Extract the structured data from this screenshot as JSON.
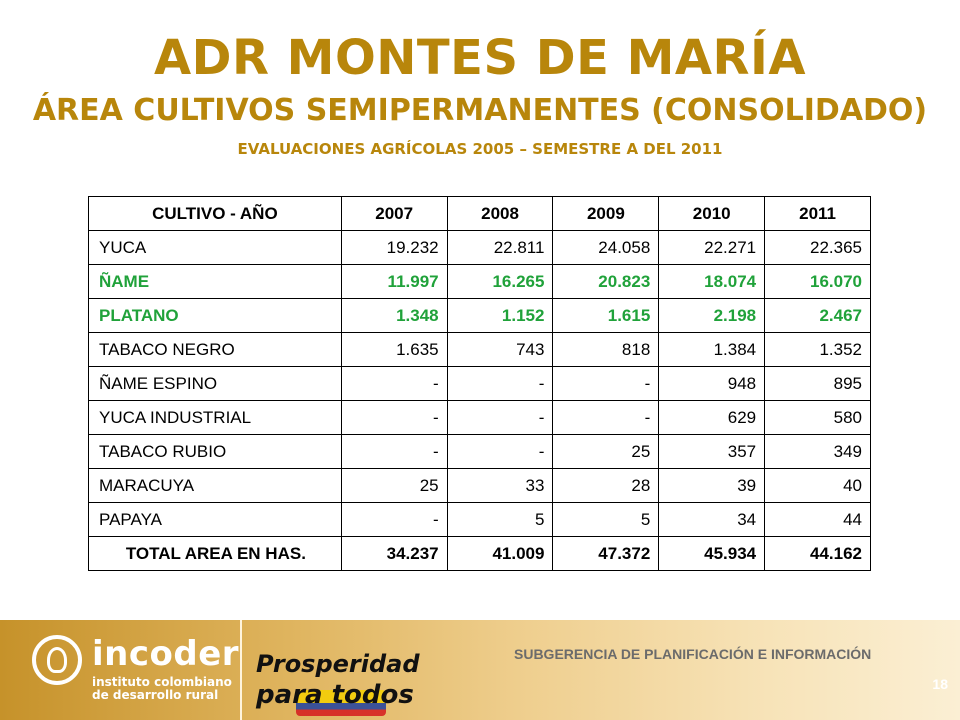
{
  "header": {
    "title": "ADR MONTES DE MARÍA",
    "subtitle": "ÁREA CULTIVOS SEMIPERMANENTES (CONSOLIDADO)",
    "caption": "EVALUACIONES AGRÍCOLAS 2005 – SEMESTRE A DEL 2011"
  },
  "table": {
    "columns": [
      "CULTIVO - AÑO",
      "2007",
      "2008",
      "2009",
      "2010",
      "2011"
    ],
    "rows": [
      {
        "crop": "YUCA",
        "values": [
          "19.232",
          "22.811",
          "24.058",
          "22.271",
          "22.365"
        ]
      },
      {
        "crop": "ÑAME",
        "values": [
          "11.997",
          "16.265",
          "20.823",
          "18.074",
          "16.070"
        ]
      },
      {
        "crop": "PLATANO",
        "values": [
          "1.348",
          "1.152",
          "1.615",
          "2.198",
          "2.467"
        ]
      },
      {
        "crop": "TABACO NEGRO",
        "values": [
          "1.635",
          "743",
          "818",
          "1.384",
          "1.352"
        ]
      },
      {
        "crop": "ÑAME ESPINO",
        "values": [
          "-",
          "-",
          "-",
          "948",
          "895"
        ]
      },
      {
        "crop": "YUCA INDUSTRIAL",
        "values": [
          "-",
          "-",
          "-",
          "629",
          "580"
        ]
      },
      {
        "crop": "TABACO RUBIO",
        "values": [
          "-",
          "-",
          "25",
          "357",
          "349"
        ]
      },
      {
        "crop": "MARACUYA",
        "values": [
          "25",
          "33",
          "28",
          "39",
          "40"
        ]
      },
      {
        "crop": "PAPAYA",
        "values": [
          "-",
          "5",
          "5",
          "34",
          "44"
        ]
      }
    ],
    "total": {
      "crop": "TOTAL AREA EN HAS.",
      "values": [
        "34.237",
        "41.009",
        "47.372",
        "45.934",
        "44.162"
      ]
    },
    "highlight_color": "#20a23a"
  },
  "footer": {
    "logo_name": "incoder",
    "logo_subtitle_1": "instituto colombiano",
    "logo_subtitle_2": "de desarrollo rural",
    "slogan_line1": "Prosperidad",
    "slogan_line2": "para todos",
    "department": "SUBGERENCIA DE PLANIFICACIÓN E INFORMACIÓN",
    "page_number": "18"
  }
}
